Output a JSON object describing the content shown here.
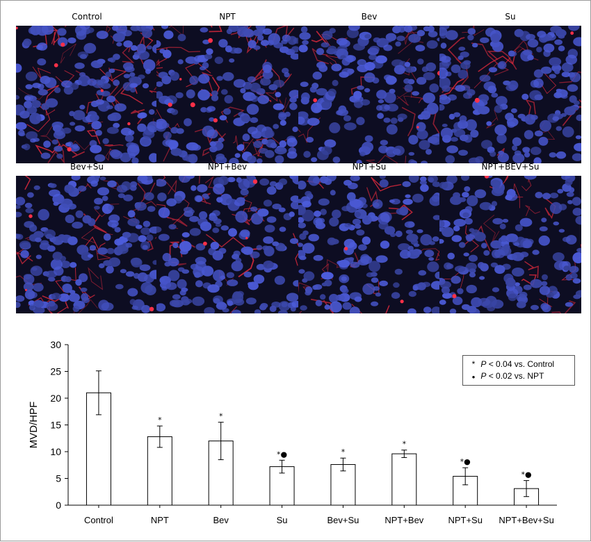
{
  "panels": [
    {
      "label": "Control",
      "reddish": 0.9
    },
    {
      "label": "NPT",
      "reddish": 0.7
    },
    {
      "label": "Bev",
      "reddish": 0.3
    },
    {
      "label": "Su",
      "reddish": 0.25
    },
    {
      "label": "Bev+Su",
      "reddish": 0.45
    },
    {
      "label": "NPT+Bev",
      "reddish": 0.35
    },
    {
      "label": "NPT+Su",
      "reddish": 0.2
    },
    {
      "label": "NPT+BEV+Su",
      "reddish": 0.15
    }
  ],
  "legend": {
    "star_symbol": "*",
    "star_p": "P",
    "star_text": " < 0.04 vs. Control",
    "dot_symbol": "●",
    "dot_p": "P",
    "dot_text": " < 0.02 vs. NPT"
  },
  "chart_data": {
    "type": "bar",
    "ylabel": "MVD/HPF",
    "ylim": [
      0,
      30
    ],
    "yticks": [
      0,
      5,
      10,
      15,
      20,
      25,
      30
    ],
    "categories": [
      "Control",
      "NPT",
      "Bev",
      "Su",
      "Bev+Su",
      "NPT+Bev",
      "NPT+Su",
      "NPT+Bev+Su"
    ],
    "values": [
      21.0,
      12.8,
      12.0,
      7.2,
      7.6,
      9.6,
      5.4,
      3.1
    ],
    "errors": [
      4.1,
      2.0,
      3.5,
      1.2,
      1.2,
      0.7,
      1.6,
      1.5
    ],
    "markers": [
      "",
      "*",
      "*",
      "*●",
      "*",
      "*",
      "*●",
      "*●"
    ],
    "grid": false
  },
  "colors": {
    "nuclei": "#3a4fd6",
    "vessel": "#d8283c",
    "background": "#0d0d22"
  }
}
